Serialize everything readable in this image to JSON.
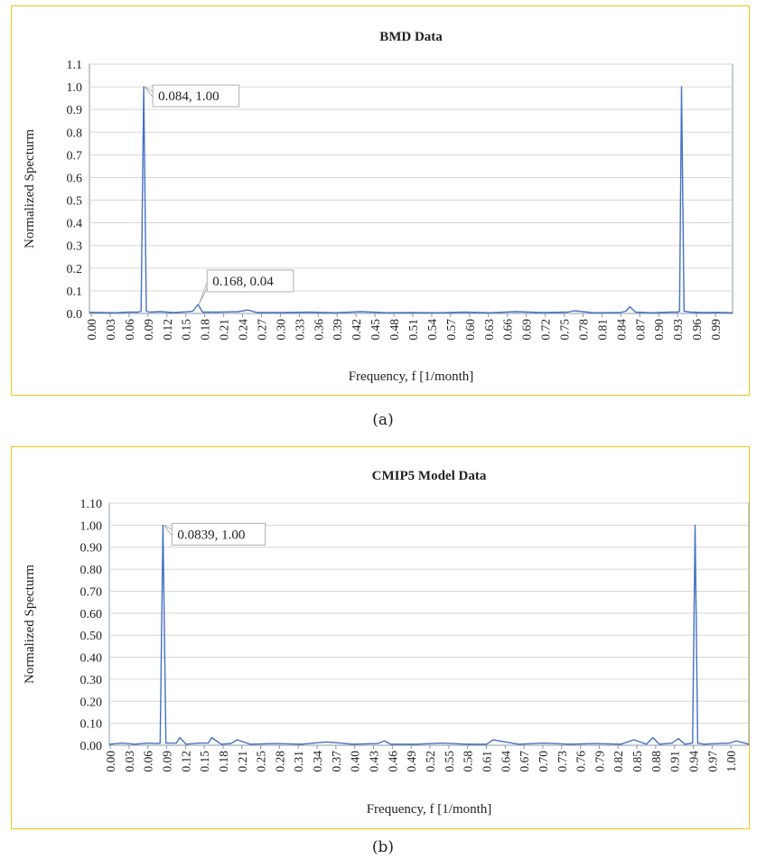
{
  "captions": [
    "(a)",
    "(b)"
  ],
  "chart_data": [
    {
      "type": "line",
      "title": "BMD Data",
      "xlabel": "Frequency, f [1/month]",
      "ylabel": "Normalized Specturm",
      "xlim": [
        0.0,
        0.995
      ],
      "ylim": [
        0.0,
        1.1
      ],
      "ytick_labels": [
        "0.0",
        "0.1",
        "0.2",
        "0.3",
        "0.4",
        "0.5",
        "0.6",
        "0.7",
        "0.8",
        "0.9",
        "1.0",
        "1.1"
      ],
      "xtick_labels": [
        "0.00",
        "0.03",
        "0.06",
        "0.09",
        "0.12",
        "0.15",
        "0.18",
        "0.21",
        "0.24",
        "0.27",
        "0.30",
        "0.33",
        "0.36",
        "0.39",
        "0.42",
        "0.45",
        "0.48",
        "0.51",
        "0.54",
        "0.57",
        "0.60",
        "0.63",
        "0.66",
        "0.69",
        "0.72",
        "0.75",
        "0.78",
        "0.81",
        "0.84",
        "0.87",
        "0.90",
        "0.93",
        "0.96",
        "0.99"
      ],
      "grid": "horizontal",
      "line_color": "#4472c4",
      "series": [
        {
          "x": [
            0.0,
            0.02,
            0.04,
            0.06,
            0.075,
            0.08,
            0.084,
            0.088,
            0.093,
            0.11,
            0.13,
            0.15,
            0.16,
            0.168,
            0.175,
            0.2,
            0.23,
            0.245,
            0.26,
            0.3,
            0.34,
            0.38,
            0.42,
            0.46,
            0.5,
            0.54,
            0.58,
            0.62,
            0.66,
            0.7,
            0.74,
            0.75,
            0.78,
            0.82,
            0.83,
            0.836,
            0.845,
            0.87,
            0.9,
            0.91,
            0.913,
            0.916,
            0.92,
            0.93,
            0.95,
            0.97,
            0.995
          ],
          "y": [
            0.005,
            0.004,
            0.003,
            0.006,
            0.006,
            0.01,
            1.0,
            0.01,
            0.006,
            0.008,
            0.004,
            0.007,
            0.01,
            0.04,
            0.006,
            0.006,
            0.008,
            0.015,
            0.004,
            0.004,
            0.006,
            0.003,
            0.008,
            0.003,
            0.004,
            0.003,
            0.006,
            0.003,
            0.008,
            0.004,
            0.006,
            0.012,
            0.003,
            0.004,
            0.01,
            0.03,
            0.006,
            0.003,
            0.006,
            0.006,
            0.01,
            1.0,
            0.01,
            0.006,
            0.004,
            0.005,
            0.003
          ]
        }
      ],
      "annotations": [
        {
          "text": "0.084, 1.00",
          "x": 0.084,
          "y": 1.0
        },
        {
          "text": "0.168, 0.04",
          "x": 0.168,
          "y": 0.04
        }
      ]
    },
    {
      "type": "line",
      "title": "CMIP5 Model Data",
      "xlabel": "Frequency, f [1/month]",
      "ylabel": "Normalized Specturm",
      "xlim": [
        0.0,
        1.0
      ],
      "ylim": [
        0.0,
        1.1
      ],
      "ytick_labels": [
        "0.00",
        "0.10",
        "0.20",
        "0.30",
        "0.40",
        "0.50",
        "0.60",
        "0.70",
        "0.80",
        "0.90",
        "1.00",
        "1.10"
      ],
      "xtick_labels": [
        "0.00",
        "0.03",
        "0.06",
        "0.09",
        "0.12",
        "0.15",
        "0.18",
        "0.21",
        "0.25",
        "0.28",
        "0.31",
        "0.34",
        "0.37",
        "0.40",
        "0.43",
        "0.46",
        "0.49",
        "0.52",
        "0.55",
        "0.58",
        "0.61",
        "0.64",
        "0.67",
        "0.70",
        "0.73",
        "0.76",
        "0.79",
        "0.82",
        "0.85",
        "0.88",
        "0.91",
        "0.94",
        "0.97",
        "1.00"
      ],
      "grid": "horizontal",
      "line_color": "#4472c4",
      "series": [
        {
          "x": [
            0.0,
            0.02,
            0.04,
            0.06,
            0.075,
            0.0795,
            0.0839,
            0.0885,
            0.095,
            0.105,
            0.11,
            0.12,
            0.14,
            0.155,
            0.16,
            0.175,
            0.19,
            0.2,
            0.22,
            0.26,
            0.3,
            0.34,
            0.38,
            0.42,
            0.43,
            0.44,
            0.48,
            0.52,
            0.56,
            0.59,
            0.6,
            0.64,
            0.68,
            0.72,
            0.76,
            0.8,
            0.82,
            0.84,
            0.85,
            0.86,
            0.88,
            0.89,
            0.9,
            0.912,
            0.916,
            0.92,
            0.93,
            0.95,
            0.97,
            0.98,
            1.0
          ],
          "y": [
            0.005,
            0.01,
            0.005,
            0.01,
            0.008,
            0.01,
            1.0,
            0.01,
            0.01,
            0.01,
            0.035,
            0.005,
            0.01,
            0.01,
            0.035,
            0.005,
            0.008,
            0.025,
            0.005,
            0.008,
            0.005,
            0.015,
            0.005,
            0.008,
            0.02,
            0.005,
            0.005,
            0.01,
            0.005,
            0.005,
            0.025,
            0.005,
            0.01,
            0.005,
            0.008,
            0.005,
            0.025,
            0.005,
            0.035,
            0.005,
            0.01,
            0.03,
            0.005,
            0.01,
            1.0,
            0.01,
            0.005,
            0.008,
            0.01,
            0.02,
            0.005
          ]
        }
      ],
      "annotations": [
        {
          "text": "0.0839, 1.00",
          "x": 0.0839,
          "y": 1.0
        }
      ]
    }
  ]
}
